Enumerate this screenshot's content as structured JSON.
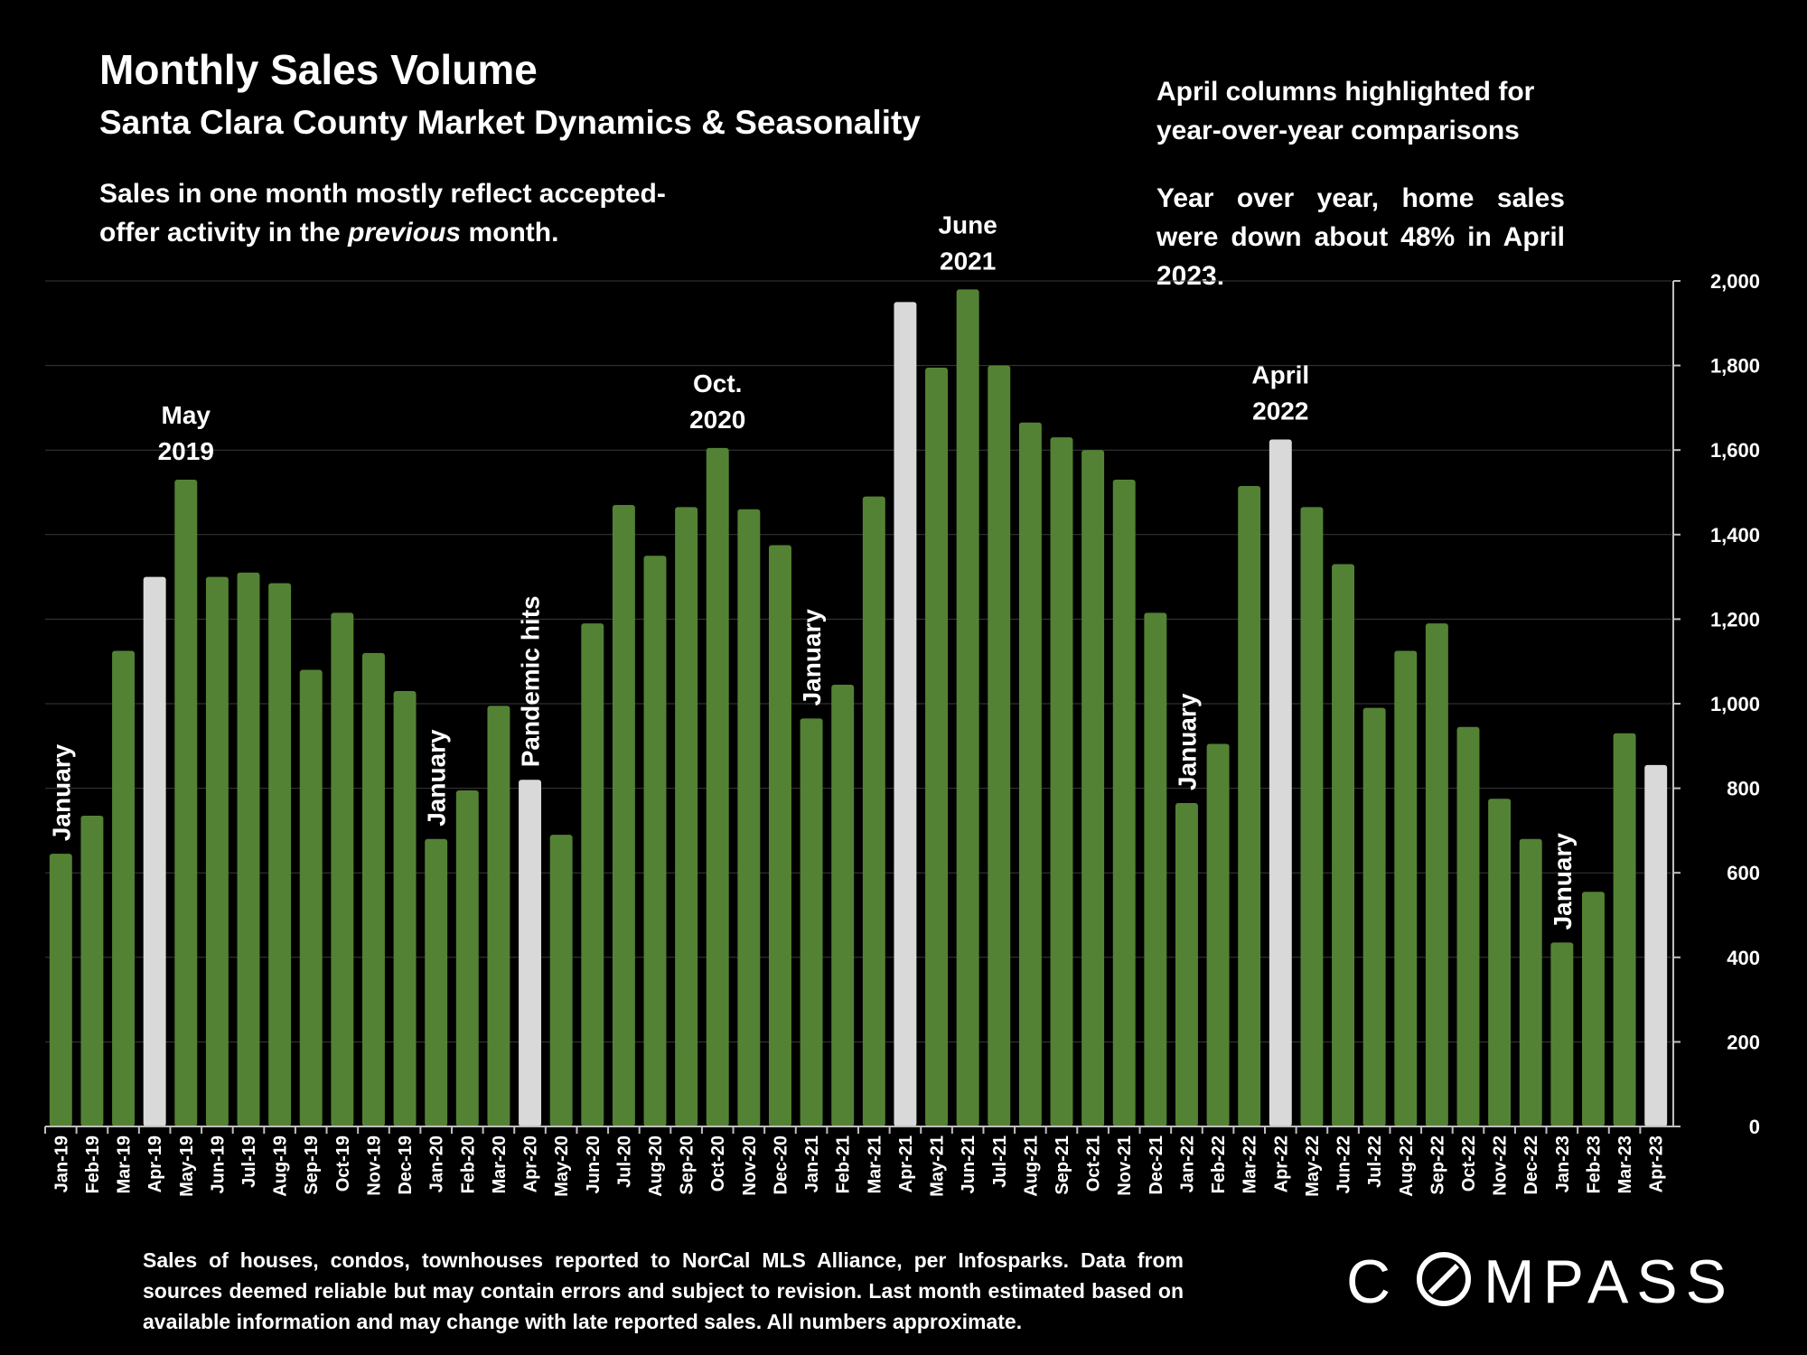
{
  "title": "Monthly Sales Volume",
  "subtitle": "Santa Clara County Market Dynamics & Seasonality",
  "note_left": {
    "line1": "Sales in one month mostly reflect accepted-",
    "line2_pre": "offer activity in the ",
    "line2_em": "previous",
    "line2_post": " month."
  },
  "note_right": {
    "p1_line1": "April columns highlighted for",
    "p1_line2": "year-over-year comparisons",
    "p2": "Year over year, home sales were down  about 48% in April 2023."
  },
  "footnote": "Sales of houses, condos, townhouses reported to NorCal MLS Alliance, per Infosparks. Data from sources deemed reliable but may contain errors and subject to revision. Last month estimated based on available information and may change with late reported sales. All numbers approximate.",
  "logo": {
    "text": "COMPASS"
  },
  "colors": {
    "bar": "#548235",
    "highlight": "#d9d9d9",
    "background": "#000000",
    "grid": "#3a3a3a"
  },
  "chart_data": {
    "type": "bar",
    "title": "",
    "xlabel": "",
    "ylabel": "",
    "ylim": [
      0,
      2000
    ],
    "yticks": [
      0,
      200,
      400,
      600,
      800,
      1000,
      1200,
      1400,
      1600,
      1800,
      2000
    ],
    "ytick_labels": [
      "0",
      "200",
      "400",
      "600",
      "800",
      "1,000",
      "1,200",
      "1,400",
      "1,600",
      "1,800",
      "2,000"
    ],
    "y_axis_side": "right",
    "grid": true,
    "categories": [
      "Jan-19",
      "Feb-19",
      "Mar-19",
      "Apr-19",
      "May-19",
      "Jun-19",
      "Jul-19",
      "Aug-19",
      "Sep-19",
      "Oct-19",
      "Nov-19",
      "Dec-19",
      "Jan-20",
      "Feb-20",
      "Mar-20",
      "Apr-20",
      "May-20",
      "Jun-20",
      "Jul-20",
      "Aug-20",
      "Sep-20",
      "Oct-20",
      "Nov-20",
      "Dec-20",
      "Jan-21",
      "Feb-21",
      "Mar-21",
      "Apr-21",
      "May-21",
      "Jun-21",
      "Jul-21",
      "Aug-21",
      "Sep-21",
      "Oct-21",
      "Nov-21",
      "Dec-21",
      "Jan-22",
      "Feb-22",
      "Mar-22",
      "Apr-22",
      "May-22",
      "Jun-22",
      "Jul-22",
      "Aug-22",
      "Sep-22",
      "Oct-22",
      "Nov-22",
      "Dec-22",
      "Jan-23",
      "Feb-23",
      "Mar-23",
      "Apr-23"
    ],
    "values": [
      645,
      735,
      1125,
      1300,
      1530,
      1300,
      1310,
      1285,
      1080,
      1215,
      1120,
      1030,
      680,
      795,
      995,
      820,
      690,
      1190,
      1470,
      1350,
      1465,
      1605,
      1460,
      1375,
      965,
      1045,
      1490,
      1950,
      1795,
      1980,
      1800,
      1665,
      1630,
      1600,
      1530,
      1215,
      765,
      905,
      1515,
      1625,
      1465,
      1330,
      990,
      1125,
      1190,
      945,
      775,
      680,
      435,
      555,
      930,
      855
    ],
    "highlighted": [
      "Apr-19",
      "Apr-20",
      "Apr-21",
      "Apr-22",
      "Apr-23"
    ],
    "annotations": [
      {
        "text": "January",
        "category": "Jan-19",
        "rotated": true
      },
      {
        "text": "May|2019",
        "category": "May-19",
        "rotated": false
      },
      {
        "text": "January",
        "category": "Jan-20",
        "rotated": true
      },
      {
        "text": "Pandemic hits",
        "category": "Apr-20",
        "rotated": true
      },
      {
        "text": "Oct.|2020",
        "category": "Oct-20",
        "rotated": false
      },
      {
        "text": "January",
        "category": "Jan-21",
        "rotated": true
      },
      {
        "text": "June|2021",
        "category": "Jun-21",
        "rotated": false
      },
      {
        "text": "January",
        "category": "Jan-22",
        "rotated": true
      },
      {
        "text": "April|2022",
        "category": "Apr-22",
        "rotated": false
      },
      {
        "text": "January",
        "category": "Jan-23",
        "rotated": true
      }
    ]
  }
}
